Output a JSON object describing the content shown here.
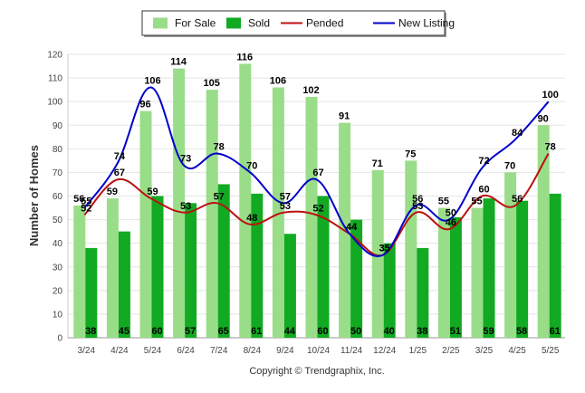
{
  "chart_data": {
    "type": "bar",
    "ylabel": "Number of Homes",
    "ylim": [
      0,
      120
    ],
    "yticks": [
      0,
      10,
      20,
      30,
      40,
      50,
      60,
      70,
      80,
      90,
      100,
      110,
      120
    ],
    "grid": true,
    "legend_position": "top-center",
    "categories": [
      "3/24",
      "4/24",
      "5/24",
      "6/24",
      "7/24",
      "8/24",
      "9/24",
      "10/24",
      "11/24",
      "12/24",
      "1/25",
      "2/25",
      "3/25",
      "4/25",
      "5/25"
    ],
    "series": [
      {
        "name": "For Sale",
        "kind": "bar",
        "color": "#99dd88",
        "values": [
          56,
          59,
          96,
          114,
          105,
          116,
          106,
          102,
          91,
          71,
          75,
          55,
          55,
          70,
          90
        ]
      },
      {
        "name": "Sold",
        "kind": "bar",
        "color": "#11aa22",
        "values": [
          38,
          45,
          60,
          57,
          65,
          61,
          44,
          60,
          50,
          40,
          38,
          51,
          59,
          58,
          61
        ]
      },
      {
        "name": "Pended",
        "kind": "line",
        "color": "#bb1111",
        "values": [
          52,
          67,
          59,
          53,
          57,
          48,
          53,
          52,
          44,
          35,
          53,
          46,
          60,
          56,
          78
        ]
      },
      {
        "name": "New Listing",
        "kind": "line",
        "color": "#0000cc",
        "values": [
          55,
          74,
          106,
          73,
          78,
          70,
          57,
          67,
          44,
          35,
          56,
          50,
          72,
          84,
          100
        ]
      }
    ]
  },
  "footer": {
    "credit": "Copyright © Trendgraphix, Inc."
  }
}
